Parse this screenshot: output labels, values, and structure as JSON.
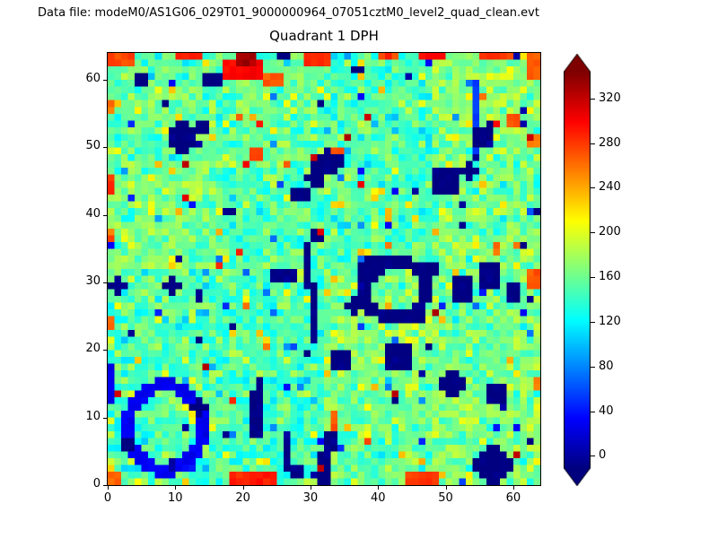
{
  "header": {
    "datafile": "Data file: modeM0/AS1G06_029T01_9000000964_07051cztM0_level2_quad_clean.evt"
  },
  "chart_data": {
    "type": "heatmap",
    "title": "Quadrant 1 DPH",
    "xlabel": "",
    "ylabel": "",
    "xlim": [
      0,
      64
    ],
    "ylim": [
      0,
      64
    ],
    "x_ticks": [
      0,
      10,
      20,
      30,
      40,
      50,
      60
    ],
    "y_ticks": [
      0,
      10,
      20,
      30,
      40,
      50,
      60
    ],
    "grid": false,
    "colormap": "jet",
    "colorbar": {
      "ticks": [
        0,
        40,
        80,
        120,
        160,
        200,
        240,
        280,
        320
      ],
      "vmin": -11,
      "vmax": 344,
      "extend": "both",
      "top_arrow_color": "#7f0000",
      "bottom_arrow_color": "#00007f"
    },
    "field": {
      "grid": 64,
      "seed": 911,
      "base_mean": 152,
      "base_std": 19,
      "block_offsets": [
        [
          0,
          -6,
          6,
          16
        ],
        [
          -4,
          -2,
          18,
          8
        ],
        [
          14,
          0,
          -2,
          12
        ],
        [
          6,
          3,
          -4,
          14
        ]
      ]
    },
    "speckles": {
      "warm": {
        "n": 110,
        "lo": 200,
        "hi": 240
      },
      "cold": {
        "n": 70,
        "lo": 30,
        "hi": 95
      },
      "hot": {
        "n": 30,
        "lo": 255,
        "hi": 335
      },
      "dark": {
        "n": 30,
        "lo": -14,
        "hi": 5
      }
    },
    "features": [
      {
        "t": "blob",
        "cx": 10.5,
        "cy": 51,
        "r": 2.3,
        "v": -12
      },
      {
        "t": "blob",
        "cx": 13.5,
        "cy": 52.5,
        "r": 1.0,
        "v": -12
      },
      {
        "t": "rect",
        "x": 14,
        "y": 59,
        "w": 3,
        "h": 2,
        "v": -12
      },
      {
        "t": "rect",
        "x": 4,
        "y": 59,
        "w": 2,
        "h": 2,
        "v": -12
      },
      {
        "t": "rect",
        "x": 8,
        "y": 56,
        "w": 1,
        "h": 1,
        "v": -12
      },
      {
        "t": "rect",
        "x": 17,
        "y": 60,
        "w": 6,
        "h": 3,
        "v": 300
      },
      {
        "t": "rect",
        "x": 23,
        "y": 59,
        "w": 3,
        "h": 2,
        "v": 270
      },
      {
        "t": "rect",
        "x": 19,
        "y": 62,
        "w": 3,
        "h": 2,
        "v": 330
      },
      {
        "t": "rect",
        "x": 0,
        "y": 62,
        "w": 4,
        "h": 2,
        "v": 275
      },
      {
        "t": "rect",
        "x": 10,
        "y": 63,
        "w": 4,
        "h": 1,
        "v": 290
      },
      {
        "t": "rect",
        "x": 29,
        "y": 62,
        "w": 4,
        "h": 2,
        "v": 285
      },
      {
        "t": "rect",
        "x": 40,
        "y": 63,
        "w": 3,
        "h": 1,
        "v": 275
      },
      {
        "t": "rect",
        "x": 46,
        "y": 63,
        "w": 4,
        "h": 1,
        "v": 295
      },
      {
        "t": "rect",
        "x": 55,
        "y": 63,
        "w": 5,
        "h": 1,
        "v": 280
      },
      {
        "t": "rect",
        "x": 62,
        "y": 60,
        "w": 2,
        "h": 4,
        "v": 265
      },
      {
        "t": "rect",
        "x": 36,
        "y": 61,
        "w": 2,
        "h": 1,
        "v": -12
      },
      {
        "t": "rect",
        "x": 25,
        "y": 63,
        "w": 2,
        "h": 1,
        "v": -12
      },
      {
        "t": "rect",
        "x": 0,
        "y": 55,
        "w": 1,
        "h": 2,
        "v": 260
      },
      {
        "t": "rect",
        "x": 0,
        "y": 43,
        "w": 1,
        "h": 3,
        "v": 280
      },
      {
        "t": "rect",
        "x": 0,
        "y": 36,
        "w": 1,
        "h": 2,
        "v": 255
      },
      {
        "t": "rect",
        "x": 0,
        "y": 23,
        "w": 1,
        "h": 2,
        "v": 265
      },
      {
        "t": "rect",
        "x": 0,
        "y": 12,
        "w": 1,
        "h": 6,
        "v": 25
      },
      {
        "t": "blob",
        "cx": 1,
        "cy": 29,
        "r": 1.2,
        "v": -10
      },
      {
        "t": "rect",
        "x": 30,
        "y": 44,
        "w": 2,
        "h": 5,
        "v": -12
      },
      {
        "t": "blob",
        "cx": 32.5,
        "cy": 47.5,
        "r": 1.6,
        "v": -12
      },
      {
        "t": "blob",
        "cx": 28,
        "cy": 42.5,
        "r": 1.1,
        "v": -12
      },
      {
        "t": "rect",
        "x": 21,
        "y": 48,
        "w": 2,
        "h": 2,
        "v": 275
      },
      {
        "t": "rect",
        "x": 33,
        "y": 49,
        "w": 2,
        "h": 1,
        "v": 270
      },
      {
        "t": "rect",
        "x": 30,
        "y": 21,
        "w": 1,
        "h": 9,
        "v": -10
      },
      {
        "t": "rect",
        "x": 29,
        "y": 29,
        "w": 1,
        "h": 7,
        "v": -10
      },
      {
        "t": "blob",
        "cx": 30.5,
        "cy": 36.5,
        "r": 1.2,
        "v": -10
      },
      {
        "t": "rect",
        "x": 24,
        "y": 30,
        "w": 4,
        "h": 2,
        "v": -8
      },
      {
        "t": "ring",
        "cx": 42,
        "cy": 28.5,
        "rx": 4.5,
        "ry": 4.2,
        "w": 1.3,
        "v": -12
      },
      {
        "t": "blob",
        "cx": 38.5,
        "cy": 31.5,
        "r": 1.7,
        "v": -12
      },
      {
        "t": "blob",
        "cx": 45.5,
        "cy": 24.5,
        "r": 1.3,
        "v": -12
      },
      {
        "t": "blob",
        "cx": 47.5,
        "cy": 31.5,
        "r": 1.4,
        "v": -12
      },
      {
        "t": "blob",
        "cx": 36,
        "cy": 26,
        "r": 1.0,
        "v": -12
      },
      {
        "t": "blob",
        "cx": 42.5,
        "cy": 18.5,
        "r": 2.4,
        "v": -14
      },
      {
        "t": "blob",
        "cx": 34,
        "cy": 18,
        "r": 1.4,
        "v": -12
      },
      {
        "t": "blob",
        "cx": 52,
        "cy": 28.5,
        "r": 1.8,
        "v": -12
      },
      {
        "t": "blob",
        "cx": 56,
        "cy": 30.5,
        "r": 2.0,
        "v": -12
      },
      {
        "t": "blob",
        "cx": 59.5,
        "cy": 28,
        "r": 1.1,
        "v": -12
      },
      {
        "t": "rect",
        "x": 62,
        "y": 29,
        "w": 2,
        "h": 3,
        "v": 270
      },
      {
        "t": "rect",
        "x": 57,
        "y": 34,
        "w": 1,
        "h": 2,
        "v": 265
      },
      {
        "t": "blob",
        "cx": 49.5,
        "cy": 44.5,
        "r": 2.2,
        "v": -12
      },
      {
        "t": "blob",
        "cx": 53,
        "cy": 46,
        "r": 1.2,
        "v": -12
      },
      {
        "t": "rect",
        "x": 54,
        "y": 49,
        "w": 1,
        "h": 11,
        "v": 55
      },
      {
        "t": "blob",
        "cx": 55,
        "cy": 51,
        "r": 1.6,
        "v": -10
      },
      {
        "t": "rect",
        "x": 59,
        "y": 53,
        "w": 2,
        "h": 2,
        "v": 270
      },
      {
        "t": "rect",
        "x": 62,
        "y": 50,
        "w": 2,
        "h": 2,
        "v": 255
      },
      {
        "t": "ring",
        "cx": 8,
        "cy": 8,
        "rx": 5.6,
        "ry": 6.2,
        "w": 1.3,
        "v": 30
      },
      {
        "t": "blob",
        "cx": 2.5,
        "cy": 5.5,
        "r": 1.3,
        "v": -12
      },
      {
        "t": "blob",
        "cx": 13,
        "cy": 11,
        "r": 1.0,
        "v": -10
      },
      {
        "t": "rect",
        "x": 21,
        "y": 7,
        "w": 2,
        "h": 7,
        "v": -10
      },
      {
        "t": "blob",
        "cx": 22,
        "cy": 14.5,
        "r": 1.0,
        "v": -10
      },
      {
        "t": "rect",
        "x": 26,
        "y": 2,
        "w": 1,
        "h": 6,
        "v": -8
      },
      {
        "t": "rect",
        "x": 27,
        "y": 1,
        "w": 2,
        "h": 2,
        "v": -8
      },
      {
        "t": "rect",
        "x": 31,
        "y": 0,
        "w": 2,
        "h": 5,
        "v": -10
      },
      {
        "t": "blob",
        "cx": 32.5,
        "cy": 6,
        "r": 1.3,
        "v": -10
      },
      {
        "t": "rect",
        "x": 33,
        "y": 8,
        "w": 1,
        "h": 3,
        "v": 265
      },
      {
        "t": "rect",
        "x": 18,
        "y": 0,
        "w": 7,
        "h": 2,
        "v": 290
      },
      {
        "t": "rect",
        "x": 44,
        "y": 0,
        "w": 5,
        "h": 2,
        "v": 280
      },
      {
        "t": "rect",
        "x": 0,
        "y": 0,
        "w": 2,
        "h": 2,
        "v": 265
      },
      {
        "t": "blob",
        "cx": 56.5,
        "cy": 2.5,
        "r": 2.6,
        "v": -13
      },
      {
        "t": "blob",
        "cx": 57,
        "cy": 13,
        "r": 1.6,
        "v": -12
      },
      {
        "t": "blob",
        "cx": 50.5,
        "cy": 14.5,
        "r": 1.7,
        "v": -12
      },
      {
        "t": "blob",
        "cx": 9,
        "cy": 29,
        "r": 1.1,
        "v": -10
      },
      {
        "t": "blob",
        "cx": 13,
        "cy": 27.5,
        "r": 0.9,
        "v": -10
      },
      {
        "t": "rect",
        "x": 63,
        "y": 14,
        "w": 1,
        "h": 2,
        "v": 255
      },
      {
        "t": "rect",
        "x": 47,
        "y": 20,
        "w": 1,
        "h": 1,
        "v": -12
      },
      {
        "t": "rect",
        "x": 17,
        "y": 40,
        "w": 2,
        "h": 1,
        "v": -10
      }
    ]
  }
}
